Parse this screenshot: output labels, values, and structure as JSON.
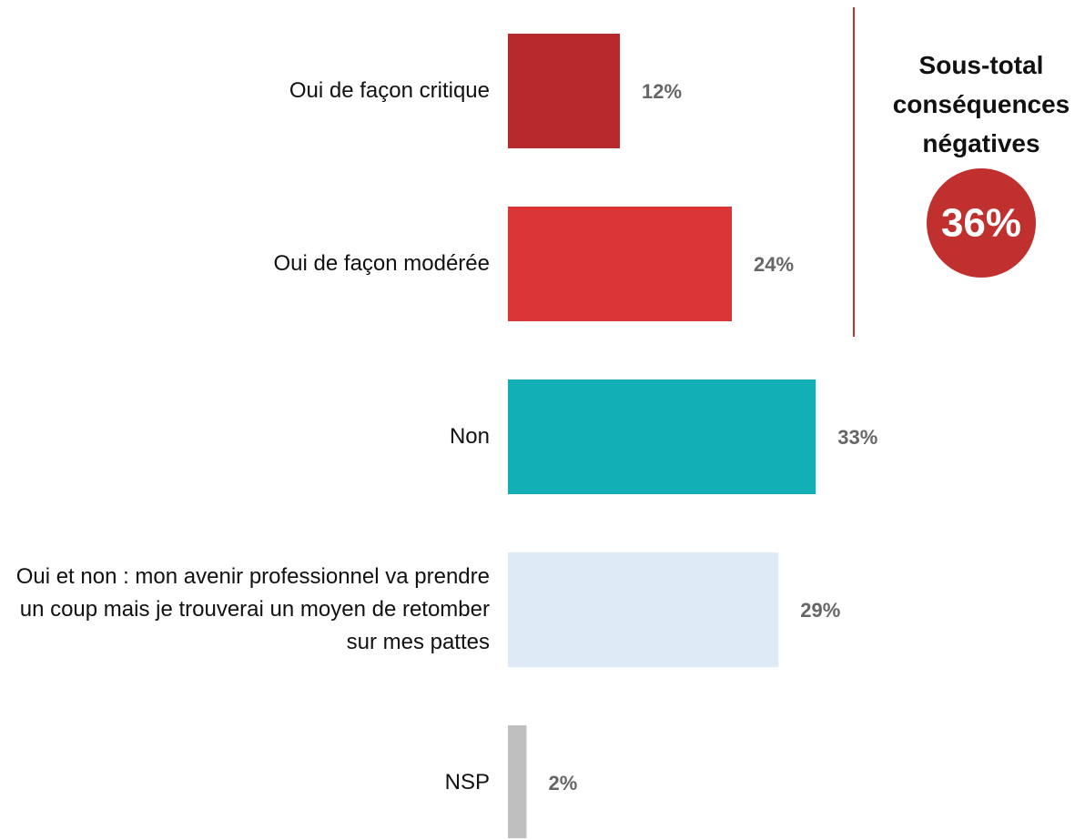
{
  "chart_data": {
    "type": "bar",
    "orientation": "horizontal",
    "categories": [
      "Oui de façon critique",
      "Oui de façon modérée",
      "Non",
      "Oui et non : mon avenir professionnel va prendre un coup mais je trouverai un moyen de retomber sur mes pattes",
      "NSP"
    ],
    "values": [
      12,
      24,
      33,
      29,
      2
    ],
    "value_labels": [
      "12%",
      "24%",
      "33%",
      "29%",
      "2%"
    ],
    "colors": [
      "#b8292d",
      "#dc3538",
      "#13afb6",
      "#deeaf5",
      "#bfbfbf"
    ],
    "subtotal": {
      "title": "Sous-total conséquences négatives",
      "value": 36,
      "value_label": "36%",
      "color": "#c0302f"
    }
  }
}
